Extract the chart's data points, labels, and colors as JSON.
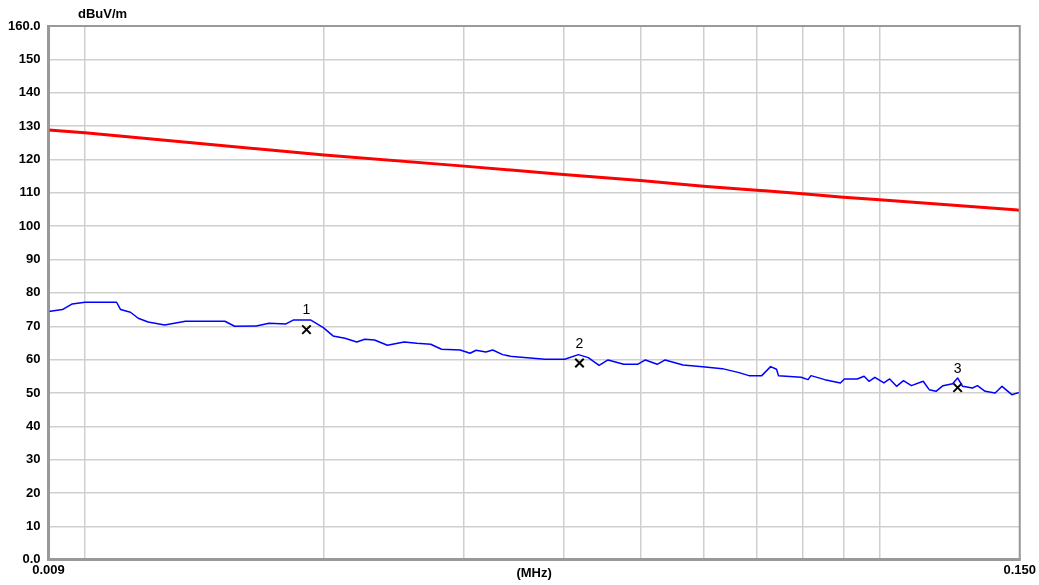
{
  "chart_data": {
    "type": "line",
    "xlabel": "(MHz)",
    "ylabel": "dBuV/m",
    "log": "x",
    "grid": true,
    "legend": false,
    "xlim": [
      0.009,
      0.15
    ],
    "xticks": [
      {
        "value": 0.009,
        "label": "0.009"
      },
      {
        "value": 0.01,
        "label": null
      },
      {
        "value": 0.02,
        "label": null
      },
      {
        "value": 0.03,
        "label": null
      },
      {
        "value": 0.04,
        "label": null
      },
      {
        "value": 0.05,
        "label": null
      },
      {
        "value": 0.06,
        "label": null
      },
      {
        "value": 0.07,
        "label": null
      },
      {
        "value": 0.08,
        "label": null
      },
      {
        "value": 0.09,
        "label": null
      },
      {
        "value": 0.1,
        "label": null
      },
      {
        "value": 0.15,
        "label": "0.150"
      }
    ],
    "ylim": [
      0,
      160
    ],
    "yticks": [
      {
        "value": 0,
        "label": "0.0"
      },
      10,
      20,
      30,
      40,
      50,
      60,
      70,
      80,
      90,
      100,
      110,
      120,
      130,
      140,
      150,
      {
        "value": 160,
        "label": "160.0"
      }
    ],
    "series": [
      {
        "type": "line",
        "color": "#ff0000",
        "x": [
          0.009,
          0.01,
          0.02,
          0.03,
          0.04,
          0.05,
          0.06,
          0.07,
          0.08,
          0.09,
          0.1,
          0.15
        ],
        "values": [
          128.8,
          128,
          121.3,
          118,
          115.5,
          113.7,
          112,
          110.8,
          109.7,
          108.7,
          107.9,
          104.8
        ]
      },
      {
        "type": "line",
        "color": "#0000ff",
        "x": [
          0.009,
          0.00937,
          0.00964,
          0.01,
          0.01096,
          0.01109,
          0.01141,
          0.01167,
          0.01201,
          0.0126,
          0.01338,
          0.015,
          0.01543,
          0.01643,
          0.01705,
          0.0179,
          0.01831,
          0.01922,
          0.01995,
          0.02052,
          0.02124,
          0.02198,
          0.02249,
          0.02314,
          0.02402,
          0.02521,
          0.02616,
          0.02723,
          0.0281,
          0.02966,
          0.03052,
          0.03105,
          0.03195,
          0.03259,
          0.03354,
          0.03451,
          0.03791,
          0.04015,
          0.04177,
          0.04298,
          0.04435,
          0.04551,
          0.04763,
          0.04957,
          0.05072,
          0.05248,
          0.0537,
          0.05655,
          0.05987,
          0.06338,
          0.06653,
          0.06845,
          0.07104,
          0.07289,
          0.07415,
          0.07457,
          0.07963,
          0.08124,
          0.08194,
          0.08528,
          0.08923,
          0.09026,
          0.09367,
          0.09556,
          0.09693,
          0.0986,
          0.1012,
          0.1029,
          0.105,
          0.1071,
          0.1096,
          0.1134,
          0.1154,
          0.1177,
          0.1201,
          0.1235,
          0.1253,
          0.1271,
          0.1308,
          0.1327,
          0.1357,
          0.1397,
          0.1425,
          0.1466,
          0.15
        ],
        "values": [
          74.4,
          75,
          76.7,
          77.2,
          77.2,
          75,
          74.2,
          72.4,
          71.3,
          70.4,
          71.5,
          71.5,
          70,
          70.1,
          70.9,
          70.7,
          71.9,
          71.9,
          69.6,
          67.1,
          66.4,
          65.3,
          66.1,
          65.9,
          64.3,
          65.3,
          64.9,
          64.6,
          63.1,
          62.9,
          61.9,
          62.8,
          62.3,
          62.9,
          61.5,
          60.9,
          60.1,
          60.1,
          61.5,
          60.6,
          58.3,
          59.9,
          58.6,
          58.6,
          59.9,
          58.6,
          59.9,
          58.4,
          57.9,
          57.3,
          56.1,
          55.2,
          55.2,
          57.9,
          57.1,
          55.2,
          54.7,
          54,
          55.2,
          54,
          53,
          54.2,
          54.2,
          55,
          53.5,
          54.7,
          53,
          54.2,
          52,
          53.7,
          52.2,
          53.5,
          51,
          50.5,
          52.2,
          52.8,
          54.5,
          52,
          51.5,
          52.2,
          50.5,
          50,
          52,
          49.5,
          50.2
        ]
      },
      {
        "type": "scatter",
        "color": "#000000",
        "marker": "cross",
        "x": [
          0.019,
          0.0419,
          0.1253
        ],
        "values": [
          69,
          59,
          51.6
        ]
      }
    ],
    "annotations": [
      {
        "text": "1",
        "x": 0.019,
        "y": 69
      },
      {
        "text": "2",
        "x": 0.0419,
        "y": 59
      },
      {
        "text": "3",
        "x": 0.1253,
        "y": 51.6
      }
    ]
  }
}
